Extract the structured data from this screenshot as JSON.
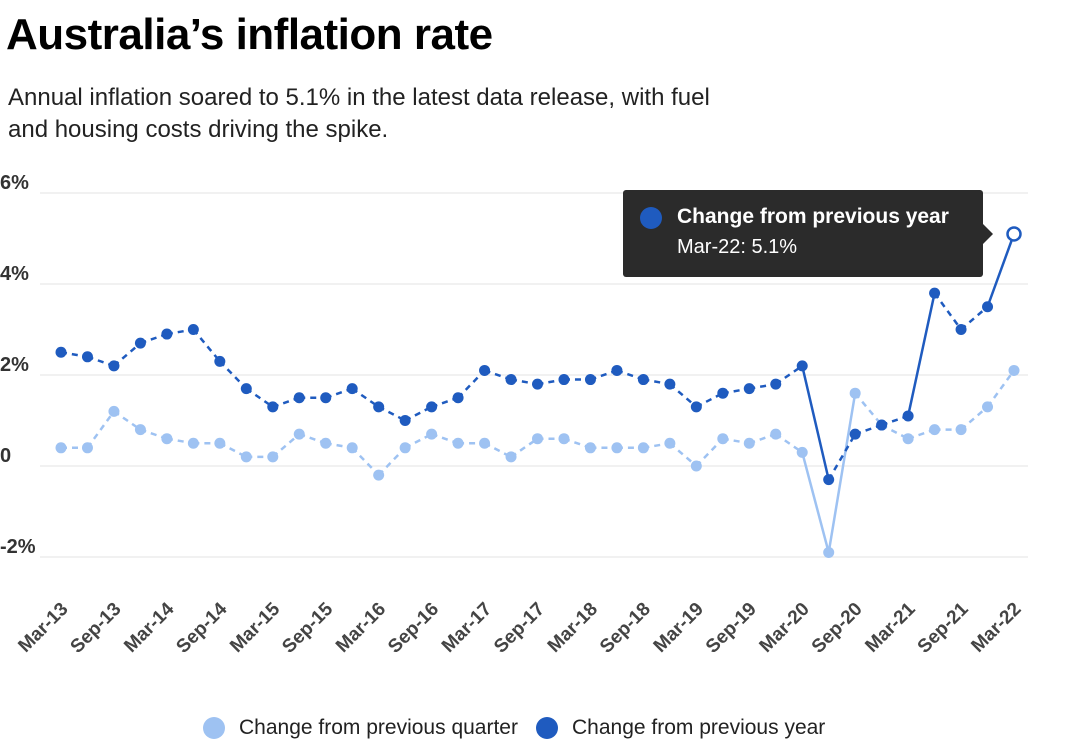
{
  "header": {
    "title": "Australia’s inflation rate",
    "subtitle": "Annual inflation soared to 5.1% in the latest data release, with fuel and housing costs driving the spike."
  },
  "colors": {
    "quarter": "#9ec2f2",
    "year": "#1f5bbf",
    "gridline": "#e3e3e3",
    "tooltip_bg": "#2b2b2b"
  },
  "tooltip": {
    "series": "Change from previous year",
    "value": "Mar-22: 5.1%"
  },
  "chart_data": {
    "type": "line",
    "title": "Australia’s inflation rate",
    "xlabel": "",
    "ylabel": "",
    "ylim": [
      -2,
      6
    ],
    "y_ticks": [
      6,
      4,
      2,
      0,
      -2
    ],
    "y_tick_labels": [
      "6%",
      "4%",
      "2%",
      "0",
      "-2%"
    ],
    "grid": true,
    "legend_position": "bottom",
    "x": [
      "Mar-13",
      "Jun-13",
      "Sep-13",
      "Dec-13",
      "Mar-14",
      "Jun-14",
      "Sep-14",
      "Dec-14",
      "Mar-15",
      "Jun-15",
      "Sep-15",
      "Dec-15",
      "Mar-16",
      "Jun-16",
      "Sep-16",
      "Dec-16",
      "Mar-17",
      "Jun-17",
      "Sep-17",
      "Dec-17",
      "Mar-18",
      "Jun-18",
      "Sep-18",
      "Dec-18",
      "Mar-19",
      "Jun-19",
      "Sep-19",
      "Dec-19",
      "Mar-20",
      "Jun-20",
      "Sep-20",
      "Dec-20",
      "Mar-21",
      "Jun-21",
      "Sep-21",
      "Dec-21",
      "Mar-22"
    ],
    "x_tick_labels": [
      "Mar-13",
      "Sep-13",
      "Mar-14",
      "Sep-14",
      "Mar-15",
      "Sep-15",
      "Mar-16",
      "Sep-16",
      "Mar-17",
      "Sep-17",
      "Mar-18",
      "Sep-18",
      "Mar-19",
      "Sep-19",
      "Mar-20",
      "Sep-20",
      "Mar-21",
      "Sep-21",
      "Mar-22"
    ],
    "series": [
      {
        "name": "Change from previous quarter",
        "color": "#9ec2f2",
        "values": [
          0.4,
          0.4,
          1.2,
          0.8,
          0.6,
          0.5,
          0.5,
          0.2,
          0.2,
          0.7,
          0.5,
          0.4,
          -0.2,
          0.4,
          0.7,
          0.5,
          0.5,
          0.2,
          0.6,
          0.6,
          0.4,
          0.4,
          0.4,
          0.5,
          0.0,
          0.6,
          0.5,
          0.7,
          0.3,
          -1.9,
          1.6,
          0.9,
          0.6,
          0.8,
          0.8,
          1.3,
          2.1
        ]
      },
      {
        "name": "Change from previous year",
        "color": "#1f5bbf",
        "values": [
          2.5,
          2.4,
          2.2,
          2.7,
          2.9,
          3.0,
          2.3,
          1.7,
          1.3,
          1.5,
          1.5,
          1.7,
          1.3,
          1.0,
          1.3,
          1.5,
          2.1,
          1.9,
          1.8,
          1.9,
          1.9,
          2.1,
          1.9,
          1.8,
          1.3,
          1.6,
          1.7,
          1.8,
          2.2,
          -0.3,
          0.7,
          0.9,
          1.1,
          3.8,
          3.0,
          3.5,
          5.1
        ]
      }
    ],
    "highlight": {
      "series": "Change from previous year",
      "x": "Mar-22",
      "value": 5.1
    }
  }
}
